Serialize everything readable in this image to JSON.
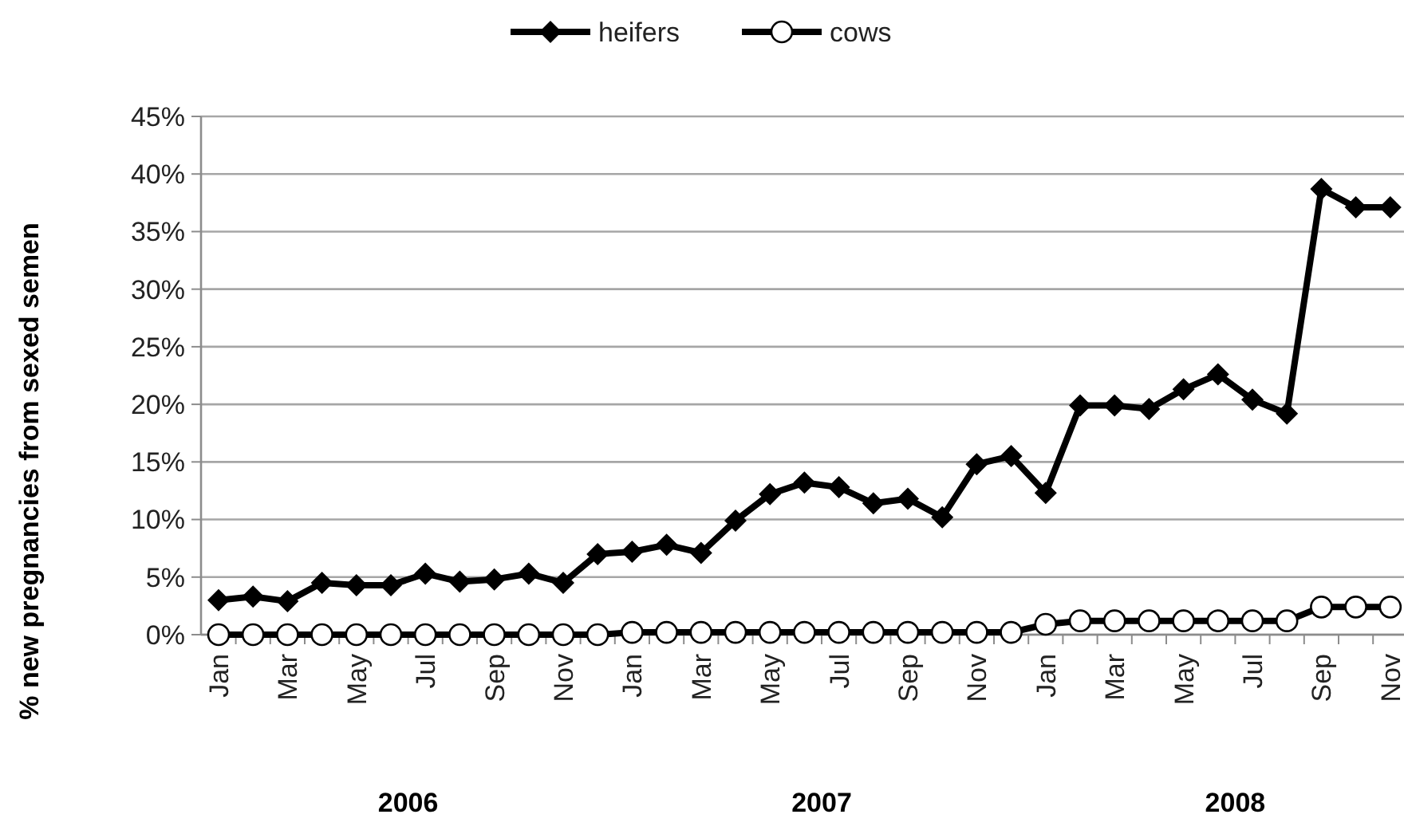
{
  "chart_data": {
    "type": "line",
    "ylabel": "% new pregnancies from sexed semen",
    "categories": [
      "Jan",
      null,
      "Mar",
      null,
      "May",
      null,
      "Jul",
      null,
      "Sep",
      null,
      "Nov",
      null,
      "Jan",
      null,
      "Mar",
      null,
      "May",
      null,
      "Jul",
      null,
      "Sep",
      null,
      "Nov",
      null,
      "Jan",
      null,
      "Mar",
      null,
      "May",
      null,
      "Jul",
      null,
      "Sep",
      null,
      "Nov"
    ],
    "series": [
      {
        "name": "heifers",
        "color": "#000000",
        "marker": "diamond",
        "values": [
          3.0,
          3.3,
          2.9,
          4.5,
          4.3,
          4.3,
          5.3,
          4.6,
          4.8,
          5.3,
          4.5,
          7.0,
          7.2,
          7.8,
          7.1,
          9.9,
          12.2,
          13.2,
          12.8,
          11.4,
          11.8,
          10.2,
          14.8,
          15.5,
          12.3,
          19.9,
          19.9,
          19.6,
          21.3,
          22.6,
          20.4,
          19.2,
          38.7,
          37.1,
          37.1
        ]
      },
      {
        "name": "cows",
        "color": "#000000",
        "marker": "circle",
        "values": [
          0,
          0,
          0,
          0,
          0,
          0,
          0,
          0,
          0,
          0,
          0,
          0,
          0.2,
          0.2,
          0.2,
          0.2,
          0.2,
          0.2,
          0.2,
          0.2,
          0.2,
          0.2,
          0.2,
          0.2,
          0.9,
          1.2,
          1.2,
          1.2,
          1.2,
          1.2,
          1.2,
          1.2,
          2.4,
          2.4,
          2.4
        ]
      }
    ],
    "ylim": [
      0,
      45
    ],
    "yticks": [
      {
        "value": 0,
        "label": "0%"
      },
      {
        "value": 5,
        "label": "5%"
      },
      {
        "value": 10,
        "label": "10%"
      },
      {
        "value": 15,
        "label": "15%"
      },
      {
        "value": 20,
        "label": "20%"
      },
      {
        "value": 25,
        "label": "25%"
      },
      {
        "value": 30,
        "label": "30%"
      },
      {
        "value": 35,
        "label": "35%"
      },
      {
        "value": 40,
        "label": "40%"
      },
      {
        "value": 45,
        "label": "45%"
      }
    ],
    "grid": "y",
    "legend": "top",
    "line_style": "solid",
    "annotations": [
      "2006",
      "2007",
      "2008"
    ]
  }
}
